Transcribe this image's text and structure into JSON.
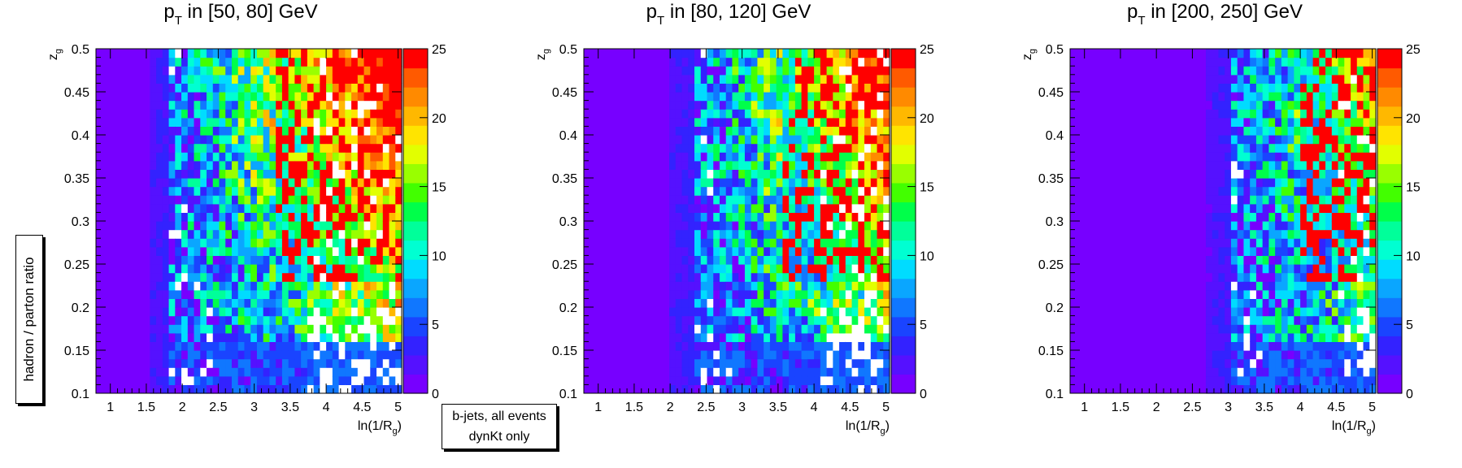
{
  "figure": {
    "side_label": "hadron / parton ratio",
    "legend_lines": [
      "b-jets, all events",
      "dynKt only"
    ]
  },
  "chart_data": [
    {
      "type": "heatmap",
      "title": "p_T in [50, 80] GeV",
      "title_main": "p",
      "title_sub": "T",
      "title_rest": " in [50, 80] GeV",
      "xlabel": "ln(1/R_g)",
      "xlabel_main": "ln(1/R",
      "xlabel_sub": "g",
      "xlabel_end": ")",
      "ylabel": "z_g",
      "ylabel_main": "z",
      "ylabel_sub": "g",
      "xlim": [
        0.8,
        5.05
      ],
      "ylim": [
        0.1,
        0.5
      ],
      "zlim": [
        0,
        25
      ],
      "x_ticks": [
        "1",
        "1.5",
        "2",
        "2.5",
        "3",
        "3.5",
        "4",
        "4.5",
        "5"
      ],
      "y_ticks": [
        "0.1",
        "0.15",
        "0.2",
        "0.25",
        "0.3",
        "0.35",
        "0.4",
        "0.45",
        "0.5"
      ],
      "z_ticks": [
        "0",
        "5",
        "10",
        "15",
        "20",
        "25"
      ],
      "x_bins": 40,
      "y_bins": 40,
      "ridge_x": 1.82,
      "high_zone_x": 3.3,
      "empty_lower_x": 3.75,
      "grid": false
    },
    {
      "type": "heatmap",
      "title": "p_T in [80, 120] GeV",
      "title_main": "p",
      "title_sub": "T",
      "title_rest": " in [80, 120] GeV",
      "xlabel": "ln(1/R_g)",
      "xlabel_main": "ln(1/R",
      "xlabel_sub": "g",
      "xlabel_end": ")",
      "ylabel": "z_g",
      "ylabel_main": "z",
      "ylabel_sub": "g",
      "xlim": [
        0.8,
        5.05
      ],
      "ylim": [
        0.1,
        0.5
      ],
      "zlim": [
        0,
        25
      ],
      "x_ticks": [
        "1",
        "1.5",
        "2",
        "2.5",
        "3",
        "3.5",
        "4",
        "4.5",
        "5"
      ],
      "y_ticks": [
        "0.1",
        "0.15",
        "0.2",
        "0.25",
        "0.3",
        "0.35",
        "0.4",
        "0.45",
        "0.5"
      ],
      "z_ticks": [
        "0",
        "5",
        "10",
        "15",
        "20",
        "25"
      ],
      "x_bins": 40,
      "y_bins": 40,
      "ridge_x": 2.3,
      "high_zone_x": 3.6,
      "empty_lower_x": 4.05,
      "grid": false
    },
    {
      "type": "heatmap",
      "title": "p_T in [200, 250] GeV",
      "title_main": "p",
      "title_sub": "T",
      "title_rest": " in [200, 250] GeV",
      "xlabel": "ln(1/R_g)",
      "xlabel_main": "ln(1/R",
      "xlabel_sub": "g",
      "xlabel_end": ")",
      "ylabel": "z_g",
      "ylabel_main": "z",
      "ylabel_sub": "g",
      "xlim": [
        0.8,
        5.05
      ],
      "ylim": [
        0.1,
        0.5
      ],
      "zlim": [
        0,
        25
      ],
      "x_ticks": [
        "1",
        "1.5",
        "2",
        "2.5",
        "3",
        "3.5",
        "4",
        "4.5",
        "5"
      ],
      "y_ticks": [
        "0.1",
        "0.15",
        "0.2",
        "0.25",
        "0.3",
        "0.35",
        "0.4",
        "0.45",
        "0.5"
      ],
      "z_ticks": [
        "0",
        "5",
        "10",
        "15",
        "20",
        "25"
      ],
      "x_bins": 40,
      "y_bins": 40,
      "ridge_x": 3.05,
      "high_zone_x": 4.0,
      "empty_lower_x": 4.6,
      "grid": false
    }
  ],
  "colors": {
    "palette": [
      "#7700ff",
      "#5511ff",
      "#3322ff",
      "#1a44ff",
      "#1077ff",
      "#0aa6ff",
      "#00dcff",
      "#00ffd2",
      "#00ff9a",
      "#00ff4a",
      "#42ff00",
      "#99ff00",
      "#e2ff00",
      "#ffe400",
      "#ffb800",
      "#ff8a00",
      "#ff5a00",
      "#ff0000"
    ],
    "empty": "#ffffff",
    "axis": "#000000"
  }
}
